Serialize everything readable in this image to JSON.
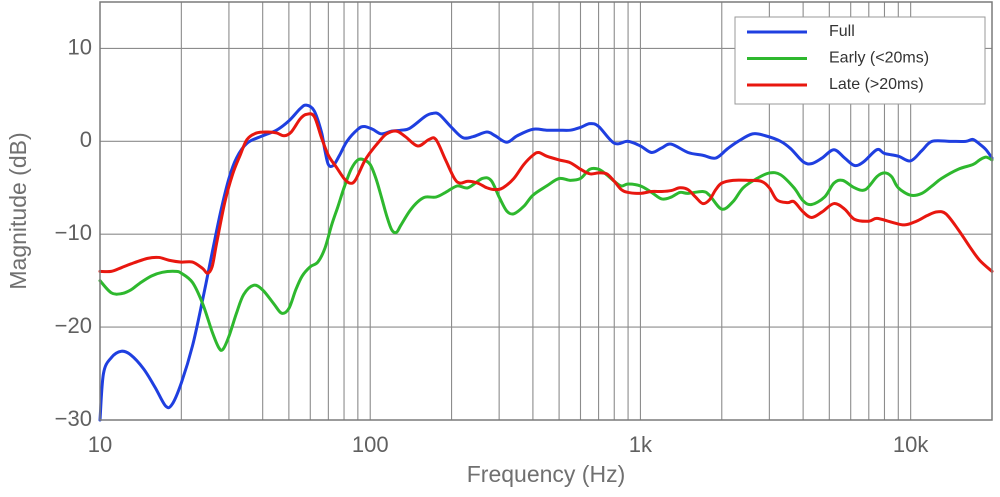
{
  "chart_data": {
    "type": "line",
    "x_scale": "log",
    "xlim": [
      10,
      20000
    ],
    "ylim": [
      -30,
      15
    ],
    "xlabel": "Frequency (Hz)",
    "ylabel": "Magnitude (dB)",
    "x_ticks": [
      {
        "value": 10,
        "label": "10"
      },
      {
        "value": 100,
        "label": "100"
      },
      {
        "value": 1000,
        "label": "1k"
      },
      {
        "value": 10000,
        "label": "10k"
      }
    ],
    "y_ticks": [
      {
        "value": 10,
        "label": "10"
      },
      {
        "value": 0,
        "label": "0"
      },
      {
        "value": -10,
        "label": "−10"
      },
      {
        "value": -20,
        "label": "−20"
      },
      {
        "value": -30,
        "label": "−30"
      }
    ],
    "grid": true,
    "legend_position": "top-right",
    "series": [
      {
        "name": "Full",
        "color": "#1f3fe0",
        "points": [
          [
            10,
            -30
          ],
          [
            10.3,
            -25
          ],
          [
            11,
            -23.3
          ],
          [
            12,
            -22.6
          ],
          [
            13,
            -23
          ],
          [
            14.5,
            -24.5
          ],
          [
            16,
            -26.5
          ],
          [
            17.5,
            -28.5
          ],
          [
            18.5,
            -28.3
          ],
          [
            20,
            -26
          ],
          [
            22,
            -22
          ],
          [
            24,
            -17
          ],
          [
            26,
            -12
          ],
          [
            28,
            -7.5
          ],
          [
            30,
            -4
          ],
          [
            32,
            -1.8
          ],
          [
            35,
            -0.2
          ],
          [
            40,
            0.6
          ],
          [
            45,
            1.2
          ],
          [
            50,
            2.2
          ],
          [
            55,
            3.5
          ],
          [
            58,
            3.9
          ],
          [
            62,
            3.3
          ],
          [
            66,
            1
          ],
          [
            68,
            -1
          ],
          [
            70,
            -2.5
          ],
          [
            73,
            -2.6
          ],
          [
            77,
            -1.5
          ],
          [
            82,
            0
          ],
          [
            90,
            1.3
          ],
          [
            95,
            1.6
          ],
          [
            102,
            1.3
          ],
          [
            110,
            0.8
          ],
          [
            120,
            1.1
          ],
          [
            130,
            1.2
          ],
          [
            140,
            1.4
          ],
          [
            160,
            2.7
          ],
          [
            170,
            3
          ],
          [
            180,
            2.9
          ],
          [
            200,
            1.5
          ],
          [
            220,
            0.4
          ],
          [
            240,
            0.5
          ],
          [
            270,
            1
          ],
          [
            290,
            0.6
          ],
          [
            320,
            -0.1
          ],
          [
            350,
            0.6
          ],
          [
            400,
            1.3
          ],
          [
            450,
            1.2
          ],
          [
            500,
            1.2
          ],
          [
            550,
            1.2
          ],
          [
            600,
            1.5
          ],
          [
            650,
            1.9
          ],
          [
            700,
            1.6
          ],
          [
            800,
            -0.2
          ],
          [
            900,
            0
          ],
          [
            1000,
            -0.5
          ],
          [
            1100,
            -1.2
          ],
          [
            1200,
            -0.7
          ],
          [
            1300,
            -0.3
          ],
          [
            1500,
            -1.2
          ],
          [
            1700,
            -1.5
          ],
          [
            1900,
            -1.8
          ],
          [
            2100,
            -0.8
          ],
          [
            2300,
            0
          ],
          [
            2600,
            0.8
          ],
          [
            2900,
            0.6
          ],
          [
            3300,
            0
          ],
          [
            3600,
            -0.8
          ],
          [
            4000,
            -2.2
          ],
          [
            4300,
            -2.4
          ],
          [
            4700,
            -1.8
          ],
          [
            5200,
            -0.9
          ],
          [
            5700,
            -1.8
          ],
          [
            6200,
            -2.6
          ],
          [
            6700,
            -2.2
          ],
          [
            7500,
            -0.9
          ],
          [
            8000,
            -1.3
          ],
          [
            9000,
            -1.6
          ],
          [
            10000,
            -2.1
          ],
          [
            11000,
            -1
          ],
          [
            12000,
            0
          ],
          [
            14000,
            0
          ],
          [
            16000,
            0
          ],
          [
            17000,
            0.2
          ],
          [
            18000,
            -0.3
          ],
          [
            19000,
            -0.9
          ],
          [
            20000,
            -1.8
          ]
        ]
      },
      {
        "name": "Early (<20ms)",
        "color": "#2eb82e",
        "points": [
          [
            10,
            -15
          ],
          [
            11,
            -16.3
          ],
          [
            12,
            -16.4
          ],
          [
            13,
            -16
          ],
          [
            14,
            -15.3
          ],
          [
            15.5,
            -14.5
          ],
          [
            17,
            -14.1
          ],
          [
            19,
            -14
          ],
          [
            20,
            -14.2
          ],
          [
            22,
            -15.2
          ],
          [
            24,
            -17.5
          ],
          [
            26,
            -20.5
          ],
          [
            27.5,
            -22.2
          ],
          [
            28.5,
            -22.4
          ],
          [
            30,
            -21
          ],
          [
            32,
            -18.5
          ],
          [
            34,
            -16.5
          ],
          [
            37,
            -15.5
          ],
          [
            40,
            -16
          ],
          [
            44,
            -17.5
          ],
          [
            47,
            -18.5
          ],
          [
            50,
            -18
          ],
          [
            53,
            -16
          ],
          [
            56,
            -14.5
          ],
          [
            60,
            -13.5
          ],
          [
            64,
            -13
          ],
          [
            68,
            -11.5
          ],
          [
            72,
            -9
          ],
          [
            76,
            -7
          ],
          [
            80,
            -5
          ],
          [
            85,
            -3
          ],
          [
            90,
            -2
          ],
          [
            95,
            -2
          ],
          [
            100,
            -2.5
          ],
          [
            105,
            -4
          ],
          [
            110,
            -6
          ],
          [
            115,
            -8
          ],
          [
            120,
            -9.5
          ],
          [
            125,
            -9.8
          ],
          [
            130,
            -9
          ],
          [
            140,
            -7.5
          ],
          [
            150,
            -6.5
          ],
          [
            160,
            -6
          ],
          [
            175,
            -6
          ],
          [
            190,
            -5.5
          ],
          [
            210,
            -4.8
          ],
          [
            230,
            -5
          ],
          [
            260,
            -4
          ],
          [
            280,
            -4.2
          ],
          [
            300,
            -6
          ],
          [
            320,
            -7.5
          ],
          [
            340,
            -7.8
          ],
          [
            370,
            -7
          ],
          [
            400,
            -5.8
          ],
          [
            450,
            -4.8
          ],
          [
            500,
            -4
          ],
          [
            550,
            -4.2
          ],
          [
            600,
            -4
          ],
          [
            650,
            -3
          ],
          [
            700,
            -3
          ],
          [
            750,
            -3.6
          ],
          [
            800,
            -4.3
          ],
          [
            850,
            -4.8
          ],
          [
            900,
            -4.6
          ],
          [
            1000,
            -4.8
          ],
          [
            1100,
            -5.5
          ],
          [
            1200,
            -6.2
          ],
          [
            1300,
            -6
          ],
          [
            1400,
            -5.5
          ],
          [
            1500,
            -5.6
          ],
          [
            1700,
            -5.4
          ],
          [
            1800,
            -5.8
          ],
          [
            2000,
            -7.3
          ],
          [
            2200,
            -6.5
          ],
          [
            2400,
            -5
          ],
          [
            2700,
            -4
          ],
          [
            3000,
            -3.4
          ],
          [
            3300,
            -3.6
          ],
          [
            3700,
            -5
          ],
          [
            4000,
            -6.4
          ],
          [
            4300,
            -6.8
          ],
          [
            4800,
            -6
          ],
          [
            5200,
            -4.5
          ],
          [
            5600,
            -4.2
          ],
          [
            6200,
            -5
          ],
          [
            6800,
            -5.2
          ],
          [
            7500,
            -3.8
          ],
          [
            8000,
            -3.4
          ],
          [
            8500,
            -3.8
          ],
          [
            9000,
            -5
          ],
          [
            10000,
            -5.8
          ],
          [
            11000,
            -5.6
          ],
          [
            12000,
            -4.8
          ],
          [
            13000,
            -4
          ],
          [
            15000,
            -3
          ],
          [
            17000,
            -2.5
          ],
          [
            18000,
            -2
          ],
          [
            19000,
            -1.7
          ],
          [
            20000,
            -2
          ]
        ]
      },
      {
        "name": "Late (>20ms)",
        "color": "#e8170f",
        "points": [
          [
            10,
            -14
          ],
          [
            11,
            -14
          ],
          [
            12,
            -13.6
          ],
          [
            13,
            -13.2
          ],
          [
            15,
            -12.6
          ],
          [
            16.5,
            -12.5
          ],
          [
            18,
            -12.8
          ],
          [
            20,
            -13
          ],
          [
            22,
            -13
          ],
          [
            24,
            -13.7
          ],
          [
            25,
            -14.2
          ],
          [
            26,
            -13.5
          ],
          [
            27,
            -11
          ],
          [
            29,
            -6.5
          ],
          [
            31,
            -3.5
          ],
          [
            33,
            -1.5
          ],
          [
            35,
            0.2
          ],
          [
            38,
            0.9
          ],
          [
            42,
            1
          ],
          [
            45,
            0.9
          ],
          [
            48,
            0.6
          ],
          [
            51,
            1
          ],
          [
            55,
            2.4
          ],
          [
            58,
            2.9
          ],
          [
            62,
            2.7
          ],
          [
            66,
            0.4
          ],
          [
            70,
            -1.5
          ],
          [
            75,
            -2.8
          ],
          [
            80,
            -4
          ],
          [
            84,
            -4.5
          ],
          [
            88,
            -4.2
          ],
          [
            95,
            -2.2
          ],
          [
            100,
            -1.2
          ],
          [
            108,
            0
          ],
          [
            115,
            0.8
          ],
          [
            125,
            1.1
          ],
          [
            135,
            0.5
          ],
          [
            150,
            -0.5
          ],
          [
            165,
            0.2
          ],
          [
            175,
            0.2
          ],
          [
            190,
            -2
          ],
          [
            205,
            -4
          ],
          [
            215,
            -4.5
          ],
          [
            230,
            -4.3
          ],
          [
            250,
            -4.5
          ],
          [
            270,
            -5
          ],
          [
            290,
            -5.2
          ],
          [
            310,
            -5
          ],
          [
            340,
            -4
          ],
          [
            370,
            -2.5
          ],
          [
            400,
            -1.5
          ],
          [
            420,
            -1.2
          ],
          [
            450,
            -1.6
          ],
          [
            500,
            -2
          ],
          [
            550,
            -2.3
          ],
          [
            600,
            -3
          ],
          [
            650,
            -3.5
          ],
          [
            700,
            -3.4
          ],
          [
            750,
            -3.5
          ],
          [
            800,
            -4.3
          ],
          [
            850,
            -5.2
          ],
          [
            900,
            -5.5
          ],
          [
            1000,
            -5.6
          ],
          [
            1100,
            -5.4
          ],
          [
            1200,
            -5.4
          ],
          [
            1300,
            -5.3
          ],
          [
            1400,
            -5
          ],
          [
            1500,
            -5.2
          ],
          [
            1600,
            -6
          ],
          [
            1700,
            -6.7
          ],
          [
            1800,
            -6.3
          ],
          [
            1900,
            -5.2
          ],
          [
            2000,
            -4.5
          ],
          [
            2200,
            -4.2
          ],
          [
            2500,
            -4.2
          ],
          [
            2800,
            -4.3
          ],
          [
            3000,
            -5
          ],
          [
            3200,
            -6.3
          ],
          [
            3500,
            -6.6
          ],
          [
            3700,
            -6.5
          ],
          [
            4000,
            -7.6
          ],
          [
            4300,
            -8.2
          ],
          [
            4700,
            -7.6
          ],
          [
            5200,
            -6.7
          ],
          [
            5700,
            -7.3
          ],
          [
            6200,
            -8.4
          ],
          [
            7000,
            -8.6
          ],
          [
            7500,
            -8.3
          ],
          [
            8500,
            -8.7
          ],
          [
            9500,
            -9
          ],
          [
            10500,
            -8.6
          ],
          [
            11500,
            -8
          ],
          [
            12500,
            -7.6
          ],
          [
            13500,
            -7.8
          ],
          [
            15000,
            -9.5
          ],
          [
            16500,
            -11.3
          ],
          [
            18000,
            -12.8
          ],
          [
            20000,
            -14
          ]
        ]
      }
    ]
  }
}
